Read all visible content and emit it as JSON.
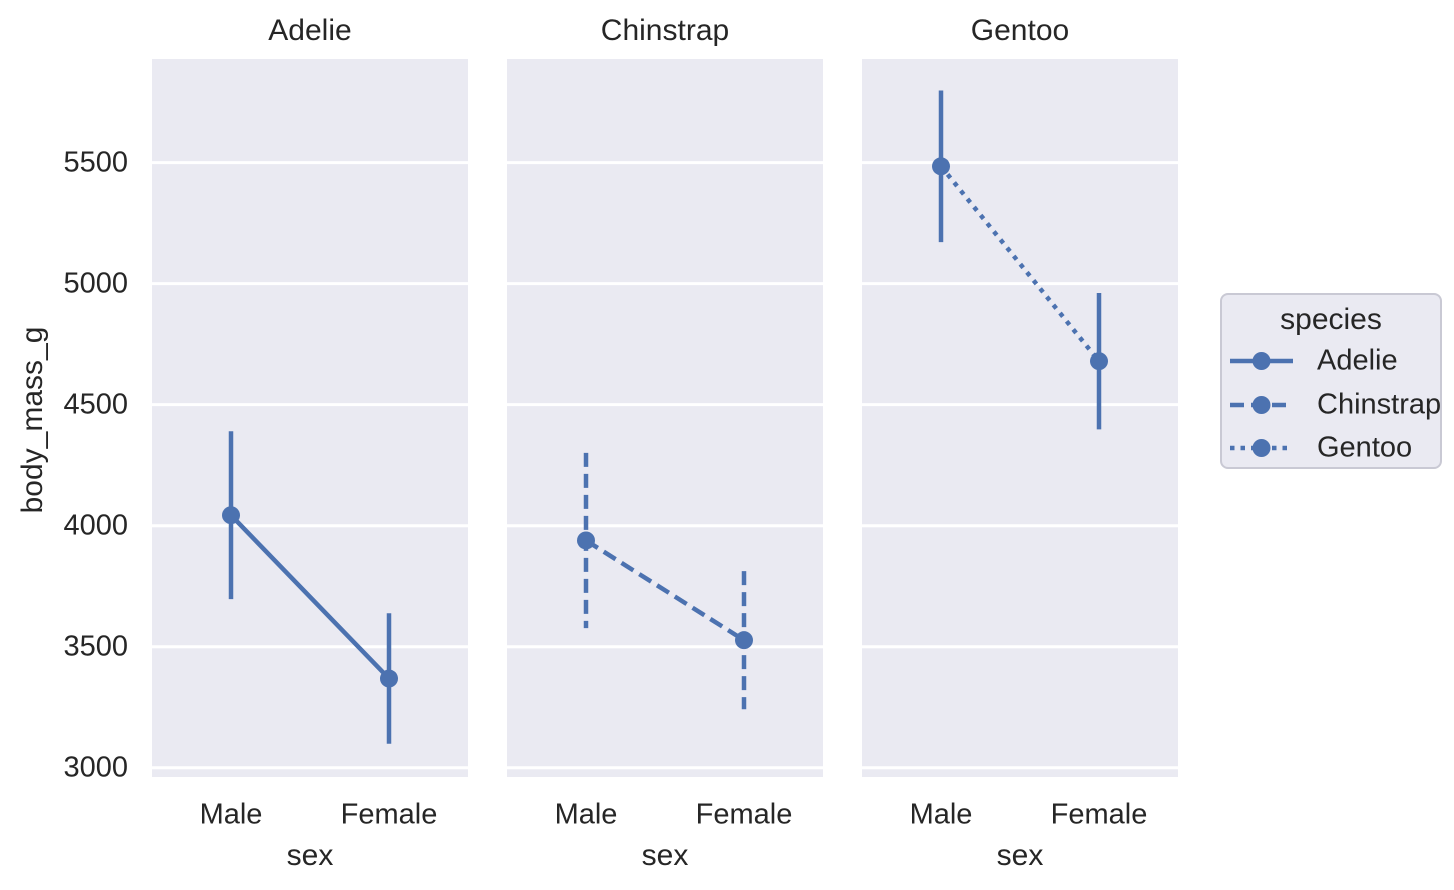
{
  "figure": {
    "background": "#ffffff",
    "panel_background": "#eaeaf2",
    "grid_color": "#ffffff",
    "text_color": "#262626",
    "accent_color": "#4c72b0"
  },
  "chart_data": {
    "type": "line",
    "subtype": "faceted-pointplot-with-errorbars",
    "facet_titles": [
      "Adelie",
      "Chinstrap",
      "Gentoo"
    ],
    "x_categories": [
      "Male",
      "Female"
    ],
    "xlabel": "sex",
    "ylabel": "body_mass_g",
    "yticks": [
      3000,
      3500,
      4000,
      4500,
      5000,
      5500
    ],
    "ylim": [
      2962,
      5928
    ],
    "grid": true,
    "errorbar": "sd",
    "series": [
      {
        "name": "Adelie",
        "linestyle": "solid",
        "errorbar_linestyle": "solid",
        "color": "#4c72b0",
        "points": [
          {
            "x": "Male",
            "mean": 4043.5,
            "lo": 3696.6,
            "hi": 4390.4
          },
          {
            "x": "Female",
            "mean": 3368.8,
            "lo": 3099.4,
            "hi": 3638.2
          }
        ]
      },
      {
        "name": "Chinstrap",
        "linestyle": "dashed",
        "errorbar_linestyle": "dashed",
        "color": "#4c72b0",
        "points": [
          {
            "x": "Male",
            "mean": 3939.0,
            "lo": 3576.9,
            "hi": 4301.1
          },
          {
            "x": "Female",
            "mean": 3527.2,
            "lo": 3241.9,
            "hi": 3812.5
          }
        ]
      },
      {
        "name": "Gentoo",
        "linestyle": "dotted",
        "errorbar_linestyle": "solid",
        "color": "#4c72b0",
        "points": [
          {
            "x": "Male",
            "mean": 5484.8,
            "lo": 5171.6,
            "hi": 5798.0
          },
          {
            "x": "Female",
            "mean": 4679.7,
            "lo": 4398.1,
            "hi": 4961.3
          }
        ]
      }
    ],
    "legend": {
      "title": "species",
      "entries": [
        "Adelie",
        "Chinstrap",
        "Gentoo"
      ],
      "position": "right"
    }
  }
}
